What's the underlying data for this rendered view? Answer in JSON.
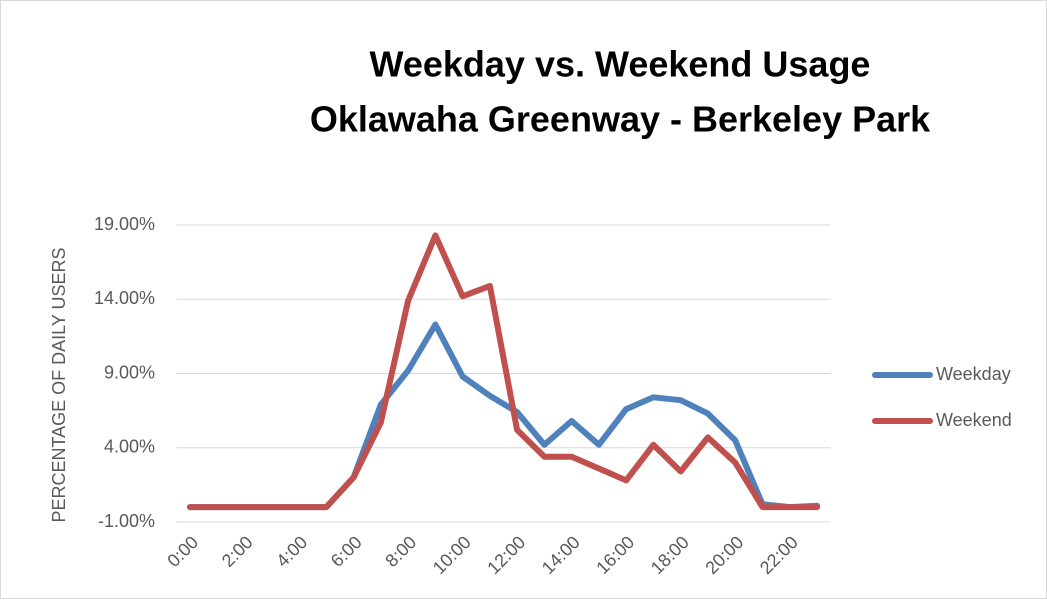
{
  "chart_data": {
    "type": "line",
    "title": [
      "Weekday vs. Weekend Usage",
      "Oklawaha Greenway - Berkeley Park"
    ],
    "y_label": "PERCENTAGE OF DAILY USERS",
    "categories": [
      "0:00",
      null,
      "2:00",
      null,
      "4:00",
      null,
      "6:00",
      null,
      "8:00",
      null,
      "10:00",
      null,
      "12:00",
      null,
      "14:00",
      null,
      "16:00",
      null,
      "18:00",
      null,
      "20:00",
      null,
      "22:00",
      null
    ],
    "series": [
      {
        "name": "Weekday",
        "color": "#4f81bd",
        "values": [
          0,
          0,
          0,
          0,
          0,
          0,
          2.0,
          6.9,
          9.2,
          12.3,
          8.8,
          7.5,
          6.4,
          4.2,
          5.8,
          4.2,
          6.6,
          7.4,
          7.2,
          6.3,
          4.5,
          0.2,
          0,
          0.1
        ]
      },
      {
        "name": "Weekend",
        "color": "#c0504d",
        "values": [
          0,
          0,
          0,
          0,
          0,
          0,
          2.0,
          5.7,
          13.9,
          18.3,
          14.2,
          14.9,
          5.2,
          3.4,
          3.4,
          2.6,
          1.8,
          4.2,
          2.4,
          4.7,
          3.0,
          0,
          0,
          0
        ]
      }
    ],
    "ylim": [
      -1,
      19
    ],
    "yticks": [
      {
        "value": -1,
        "label": "-1.00%"
      },
      {
        "value": 4,
        "label": "4.00%"
      },
      {
        "value": 9,
        "label": "9.00%"
      },
      {
        "value": 14,
        "label": "14.00%"
      },
      {
        "value": 19,
        "label": "19.00%"
      }
    ],
    "grid": true,
    "legend": "right"
  }
}
